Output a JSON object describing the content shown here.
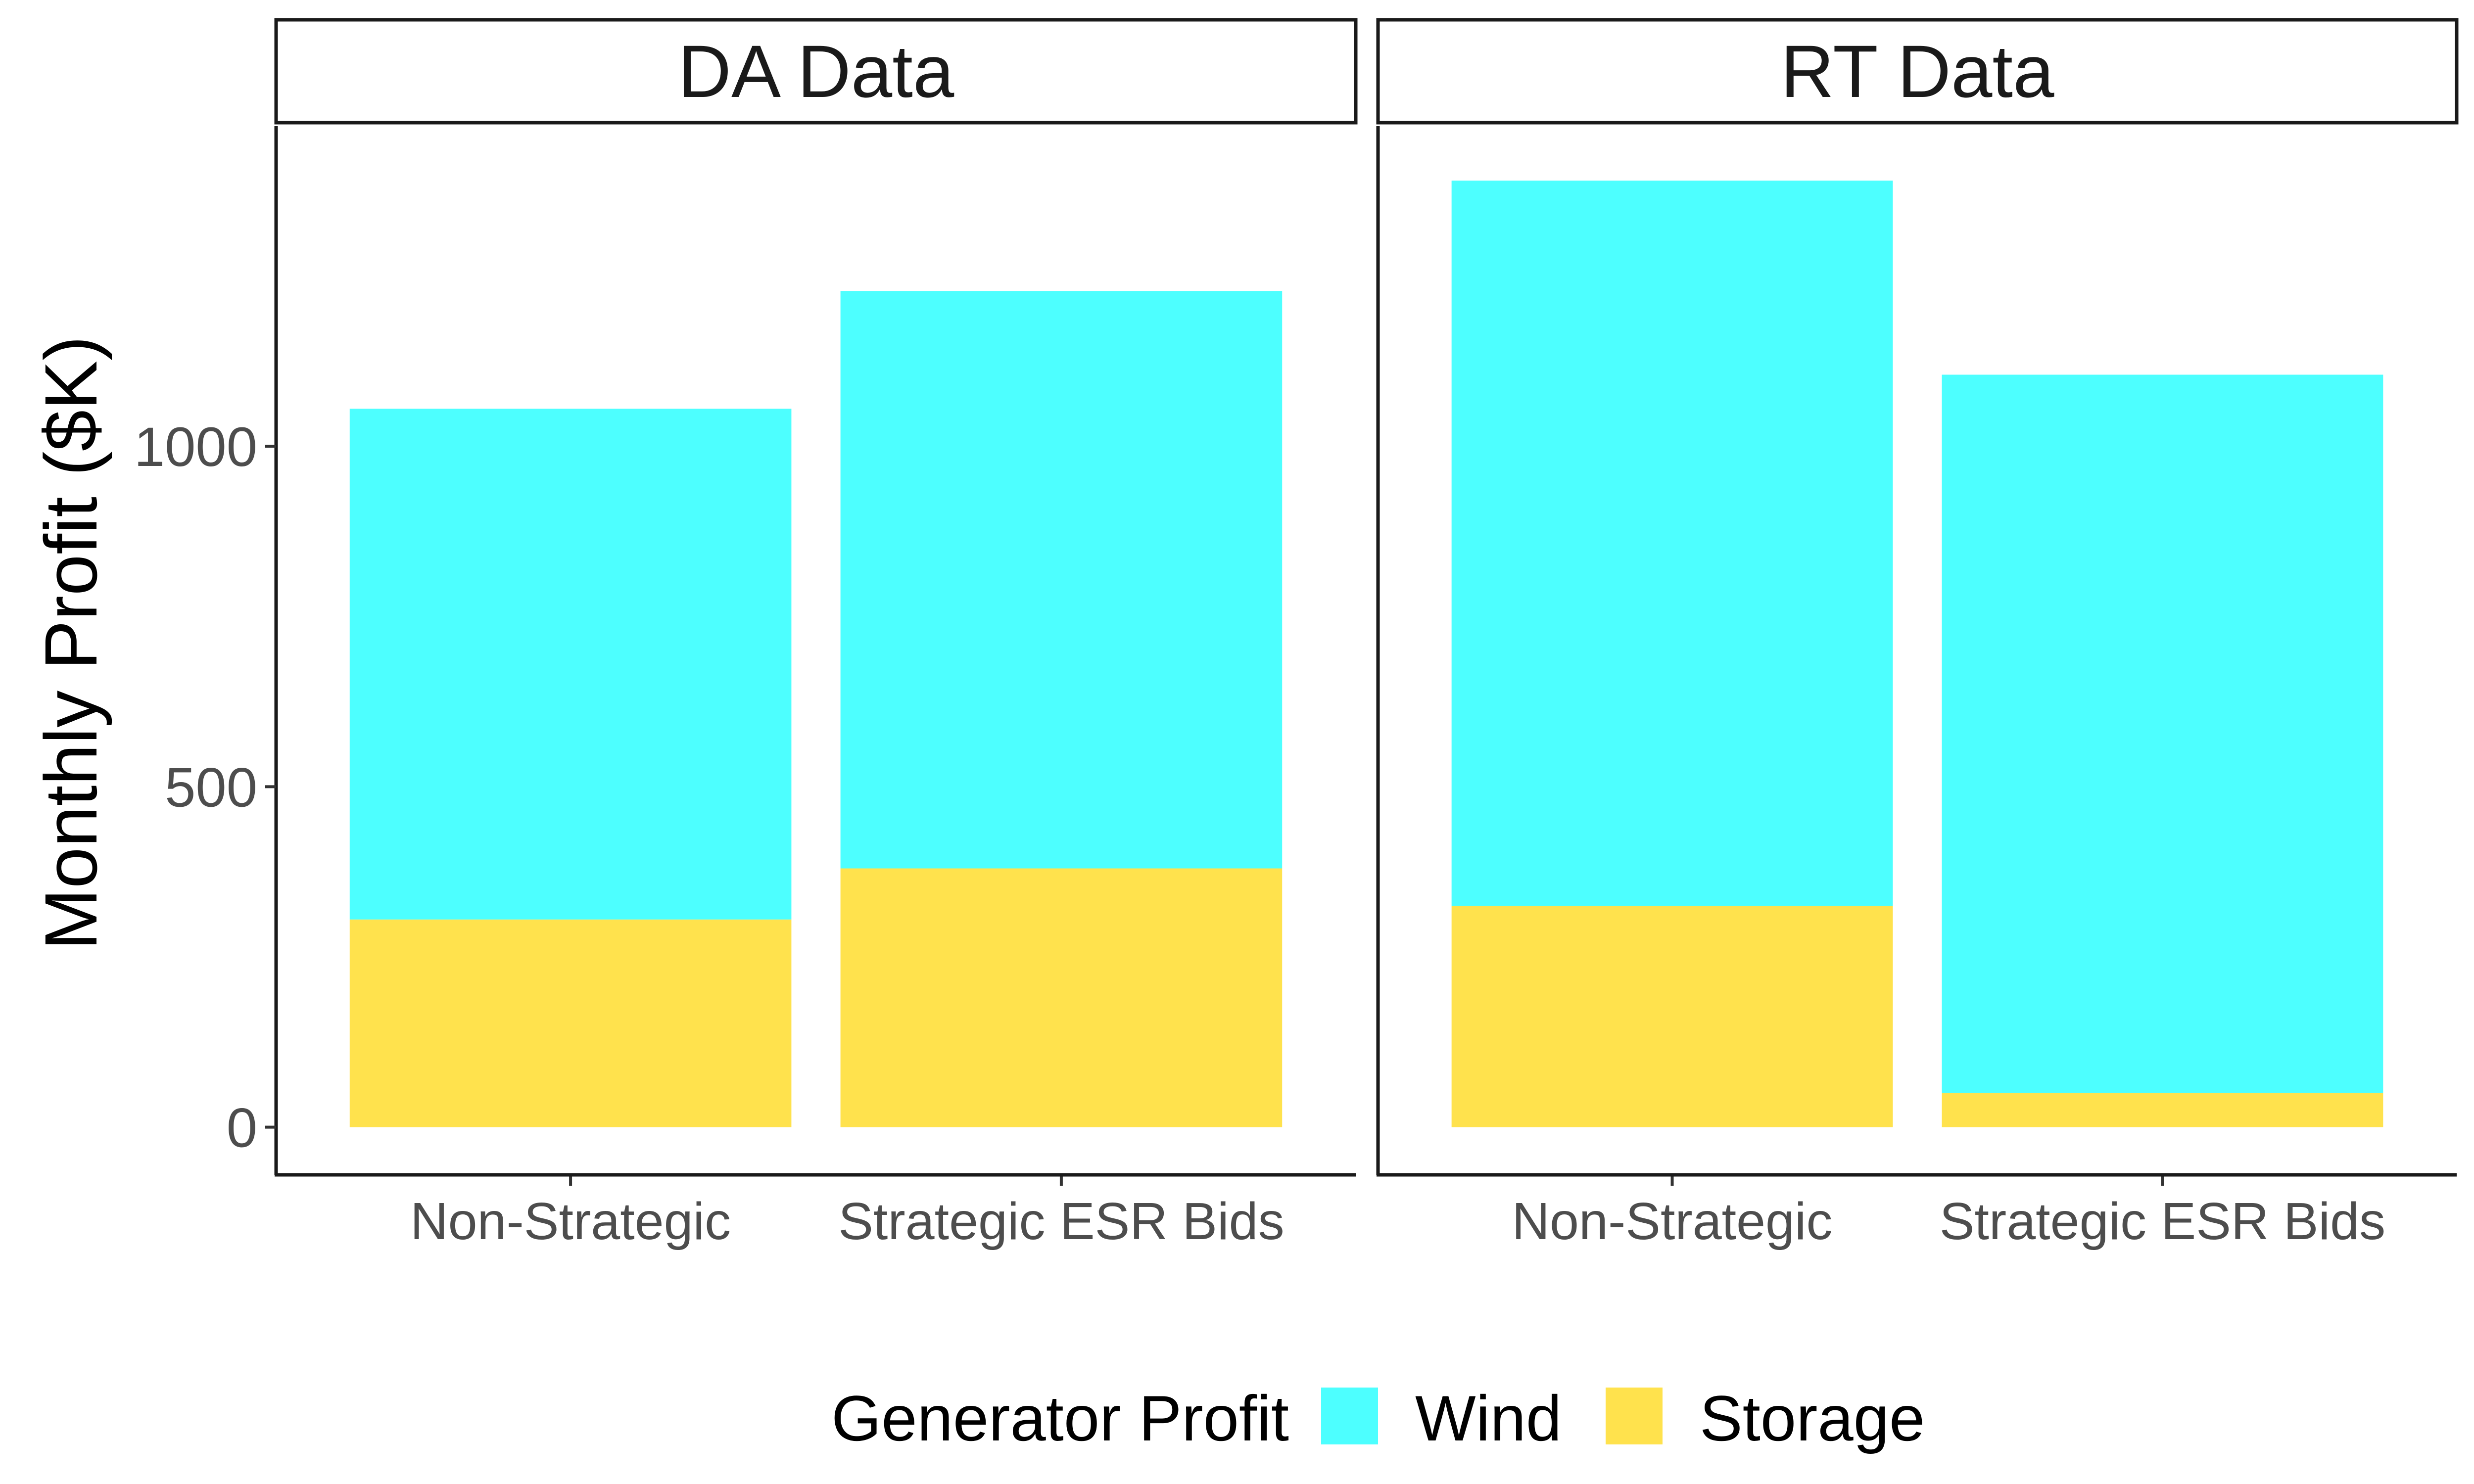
{
  "chart_data": {
    "type": "bar",
    "stacked": true,
    "ylabel": "Monthly Profit ($K)",
    "ylim": [
      -70,
      1470
    ],
    "yticks": [
      0,
      500,
      1000
    ],
    "categories": [
      "Non-Strategic",
      "Strategic ESR Bids"
    ],
    "panels": [
      {
        "title": "DA Data",
        "series": [
          {
            "name": "Storage",
            "values": [
              305,
              380
            ]
          },
          {
            "name": "Wind",
            "values": [
              750,
              848
            ]
          }
        ]
      },
      {
        "title": "RT Data",
        "series": [
          {
            "name": "Storage",
            "values": [
              325,
              50
            ]
          },
          {
            "name": "Wind",
            "values": [
              1065,
              1055
            ]
          }
        ]
      }
    ],
    "legend": {
      "title": "Generator Profit",
      "position": "bottom",
      "entries": [
        "Wind",
        "Storage"
      ]
    },
    "colors": {
      "Wind": "#4DFFFF",
      "Storage": "#FFE24D"
    },
    "grid": false
  }
}
